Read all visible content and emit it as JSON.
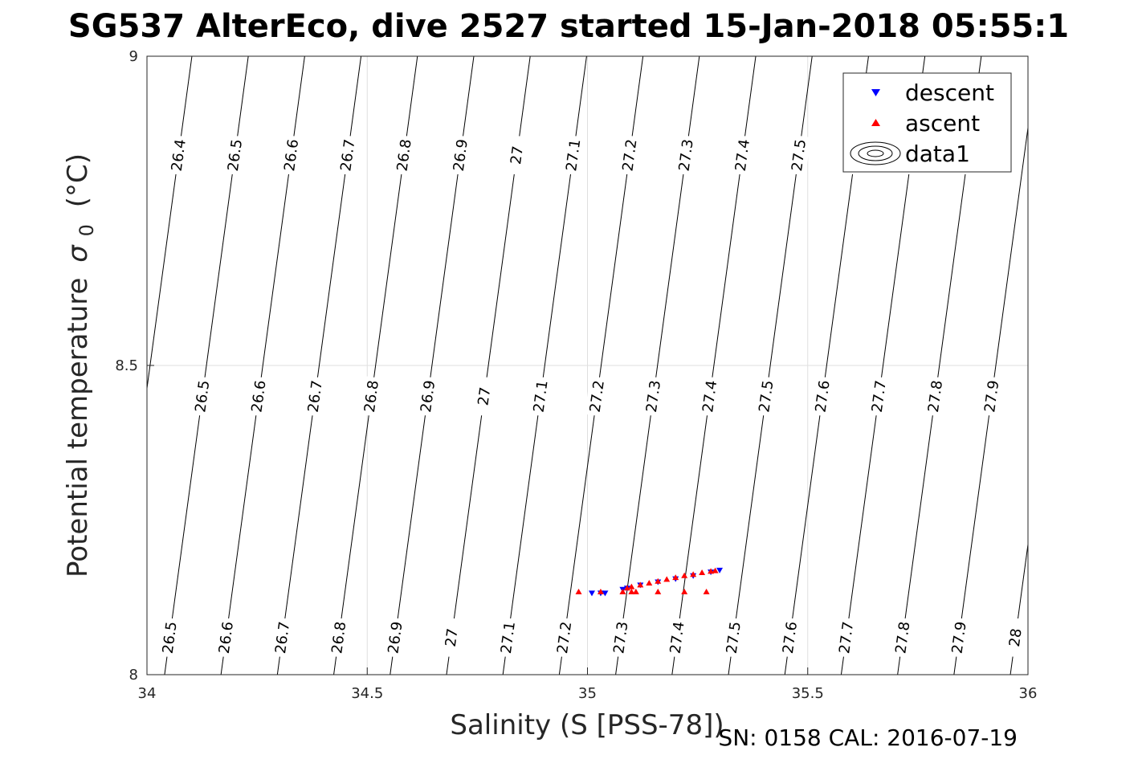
{
  "chart_data": {
    "type": "scatter",
    "title": "SG537 AlterEco, dive 2527 started 15-Jan-2018 05:55:1",
    "xlabel": "Salinity (S [PSS-78])",
    "ylabel": "Potential temperature",
    "ylabel_symbol": "σ",
    "ylabel_subscript": "0",
    "ylabel_unit": "(°C)",
    "xlim": [
      34,
      36
    ],
    "ylim": [
      8,
      9
    ],
    "x_ticks": [
      "34",
      "34.5",
      "35",
      "35.5",
      "36"
    ],
    "y_ticks": [
      "8",
      "8.5",
      "9"
    ],
    "grid": true,
    "legend_position": "top-right",
    "legend": [
      "descent",
      "ascent",
      "data1"
    ],
    "footer": "SN: 0158  CAL: 2016-07-19",
    "contours": {
      "levels": [
        "26.4",
        "26.5",
        "26.6",
        "26.7",
        "26.8",
        "26.9",
        "27",
        "27.1",
        "27.2",
        "27.3",
        "27.4",
        "27.5",
        "27.6",
        "27.7",
        "27.8",
        "27.9",
        "28"
      ],
      "row_labels_top": [
        "26.4",
        "26.5",
        "26.6",
        "26.7",
        "26.8",
        "26.9",
        "27",
        "27.1",
        "27.2",
        "27.3",
        "27.4",
        "27.5",
        "27.6",
        "27.7",
        "27.8",
        "27.9"
      ],
      "row_labels_mid": [
        "26.5",
        "26.6",
        "26.7",
        "26.8",
        "26.9",
        "27",
        "27.1",
        "27.2",
        "27.3",
        "27.4",
        "27.5",
        "27.6",
        "27.7",
        "27.8",
        "27.9"
      ],
      "row_labels_bottom": [
        "26.5",
        "26.6",
        "26.7",
        "26.8",
        "26.9",
        "27",
        "27.1",
        "27.2",
        "27.3",
        "27.4",
        "27.5",
        "27.6",
        "27.7",
        "27.8",
        "27.9",
        "28"
      ]
    },
    "series": [
      {
        "name": "descent",
        "marker": "triangle-down",
        "color": "#0000ff",
        "points": [
          [
            35.01,
            8.132
          ],
          [
            35.03,
            8.132
          ],
          [
            35.04,
            8.132
          ],
          [
            35.08,
            8.138
          ],
          [
            35.09,
            8.14
          ],
          [
            35.12,
            8.145
          ],
          [
            35.16,
            8.15
          ],
          [
            35.2,
            8.155
          ],
          [
            35.24,
            8.16
          ],
          [
            35.28,
            8.166
          ],
          [
            35.3,
            8.169
          ]
        ]
      },
      {
        "name": "ascent",
        "marker": "triangle-up",
        "color": "#ff0000",
        "points": [
          [
            34.98,
            8.134
          ],
          [
            35.03,
            8.134
          ],
          [
            35.08,
            8.134
          ],
          [
            35.1,
            8.134
          ],
          [
            35.11,
            8.134
          ],
          [
            35.16,
            8.134
          ],
          [
            35.22,
            8.134
          ],
          [
            35.27,
            8.134
          ],
          [
            35.09,
            8.14
          ],
          [
            35.1,
            8.142
          ],
          [
            35.12,
            8.145
          ],
          [
            35.14,
            8.148
          ],
          [
            35.16,
            8.151
          ],
          [
            35.18,
            8.154
          ],
          [
            35.2,
            8.157
          ],
          [
            35.22,
            8.16
          ],
          [
            35.24,
            8.162
          ],
          [
            35.26,
            8.165
          ],
          [
            35.28,
            8.167
          ],
          [
            35.29,
            8.168
          ]
        ]
      }
    ]
  }
}
